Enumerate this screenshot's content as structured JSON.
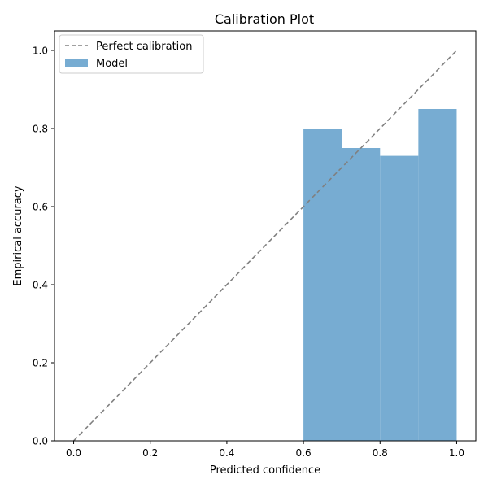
{
  "chart_data": {
    "type": "bar",
    "title": "Calibration Plot",
    "xlabel": "Predicted confidence",
    "ylabel": "Empirical accuracy",
    "xlim": [
      -0.05,
      1.05
    ],
    "ylim": [
      0.0,
      1.05
    ],
    "xticks": [
      "0.0",
      "0.2",
      "0.4",
      "0.6",
      "0.8",
      "1.0"
    ],
    "yticks": [
      "0.0",
      "0.2",
      "0.4",
      "0.6",
      "0.8",
      "1.0"
    ],
    "bins": [
      {
        "x0": 0.6,
        "x1": 0.7,
        "value": 0.8
      },
      {
        "x0": 0.7,
        "x1": 0.8,
        "value": 0.75
      },
      {
        "x0": 0.8,
        "x1": 0.9,
        "value": 0.73
      },
      {
        "x0": 0.9,
        "x1": 1.0,
        "value": 0.85
      }
    ],
    "reference_line": {
      "name": "Perfect calibration",
      "x": [
        0.0,
        1.0
      ],
      "y": [
        0.0,
        1.0
      ],
      "color": "#808080",
      "style": "dashed"
    },
    "bar_series_name": "Model",
    "bar_color": "#77acd2",
    "legend": {
      "position": "top-left"
    },
    "grid": false
  }
}
